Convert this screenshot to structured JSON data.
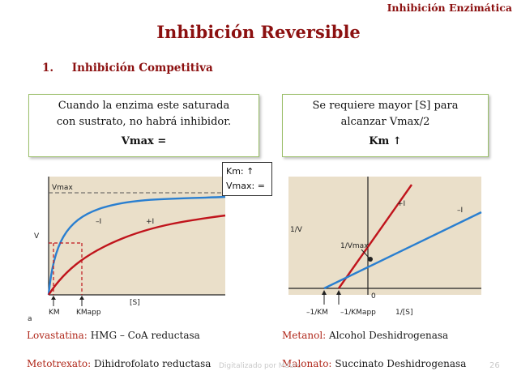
{
  "header": {
    "tag": "Inhibición Enzimática"
  },
  "title": "Inhibición Reversible",
  "subtitle": {
    "number": "1.",
    "text": "Inhibición Competitiva"
  },
  "box_left": {
    "line1": "Cuando la enzima este saturada",
    "line2": "con sustrato, no habrá inhibidor.",
    "line3": "Vmax  ="
  },
  "box_right": {
    "line1": "Se requiere mayor [S] para",
    "line2": "alcanzar Vmax/2",
    "line3": "Km  ↑"
  },
  "note": {
    "line1": "Km:    ↑",
    "line2": "Vmax: ="
  },
  "graph_left": {
    "vmax_label": "Vmax",
    "v_label": "V",
    "minus_i": "–I",
    "plus_i": "+I",
    "km_label": "KM",
    "kmapp_label": "KMapp",
    "s_label": "[S]",
    "panel_label": "a"
  },
  "graph_right": {
    "v_axis": "1/V",
    "plus_i": "+I",
    "minus_i": "–I",
    "intercept_label": "1/Vmax",
    "origin": "0",
    "x_int_a": "–1/KM",
    "x_int_b": "–1/KMapp",
    "x_axis": "1/[S]"
  },
  "footer": {
    "item1_label": "Lovastatina:",
    "item1_text": "HMG – CoA reductasa",
    "item2_label": "Metanol:",
    "item2_text": "Alcohol Deshidrogenasa",
    "item3_label": "Metotrexato:",
    "item3_text": "Dihidrofolato reductasa",
    "item4_label": "Malonato:",
    "item4_text": "Succinato Deshidrogenasa"
  },
  "watermark": "Digitalizado por Mauro",
  "page_number": "26",
  "colors": {
    "accent": "#8c1010",
    "label_red": "#b0271a",
    "box_border": "#9bbf6a",
    "curve_blue": "#2a7fd0",
    "curve_red": "#c0141c",
    "graph_bg": "#eadfc9"
  }
}
